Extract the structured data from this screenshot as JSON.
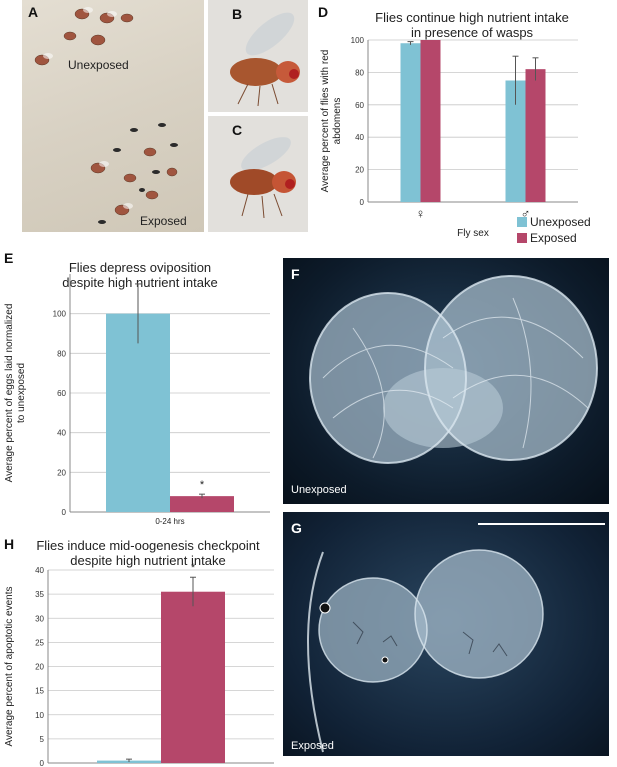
{
  "panels": {
    "a": {
      "letter": "A",
      "upper_label": "Unexposed",
      "lower_label": "Exposed"
    },
    "b": {
      "letter": "B"
    },
    "c": {
      "letter": "C"
    },
    "d": {
      "letter": "D"
    },
    "e": {
      "letter": "E"
    },
    "f": {
      "letter": "F",
      "caption": "Unexposed"
    },
    "g": {
      "letter": "G",
      "caption": "Exposed"
    },
    "h": {
      "letter": "H"
    }
  },
  "colors": {
    "unexposed": "#7fc2d4",
    "exposed": "#b5476a",
    "grid": "#c8c8c8",
    "axis": "#888888",
    "error": "#555555"
  },
  "chart_data": [
    {
      "id": "D",
      "type": "bar",
      "title": [
        "Flies continue high nutrient intake",
        "in presence of wasps"
      ],
      "xlabel": "Fly sex",
      "ylabel": [
        "Average percent of flies with red",
        "abdomens"
      ],
      "categories": [
        "♀",
        "♂"
      ],
      "series": [
        {
          "name": "Unexposed",
          "values": [
            98,
            75
          ],
          "errors": [
            1,
            15
          ]
        },
        {
          "name": "Exposed",
          "values": [
            100,
            82
          ],
          "errors": [
            0,
            7
          ]
        }
      ],
      "ylim": [
        0,
        100
      ],
      "yticks": [
        0,
        20,
        40,
        60,
        80,
        100
      ],
      "legend": "bottom-right",
      "grid": true
    },
    {
      "id": "E",
      "type": "bar",
      "title": [
        "Flies depress oviposition",
        "despite high nutrient intake"
      ],
      "xlabel": "",
      "ylabel": [
        "Average percent of eggs laid normalized",
        "to unexposed"
      ],
      "categories": [
        "0-24 hrs"
      ],
      "series": [
        {
          "name": "Unexposed",
          "values": [
            100
          ],
          "errors": [
            15
          ]
        },
        {
          "name": "Exposed",
          "values": [
            8
          ],
          "errors": [
            1
          ]
        }
      ],
      "annotations": [
        "*"
      ],
      "ylim": [
        0,
        120
      ],
      "yticks": [
        0,
        20,
        40,
        60,
        80,
        100
      ],
      "grid": true
    },
    {
      "id": "H",
      "type": "bar",
      "title": [
        "Flies induce mid-oogenesis checkpoint",
        "despite high nutrient intake"
      ],
      "xlabel": "",
      "ylabel": [
        "Average percent of apoptotic events"
      ],
      "categories": [
        ""
      ],
      "series": [
        {
          "name": "Unexposed",
          "values": [
            0.5
          ],
          "errors": [
            0.3
          ]
        },
        {
          "name": "Exposed",
          "values": [
            35.5
          ],
          "errors": [
            3
          ]
        }
      ],
      "annotations": [
        "*"
      ],
      "ylim": [
        0,
        40
      ],
      "yticks": [
        0,
        5,
        10,
        15,
        20,
        25,
        30,
        35,
        40
      ],
      "grid": true
    }
  ]
}
